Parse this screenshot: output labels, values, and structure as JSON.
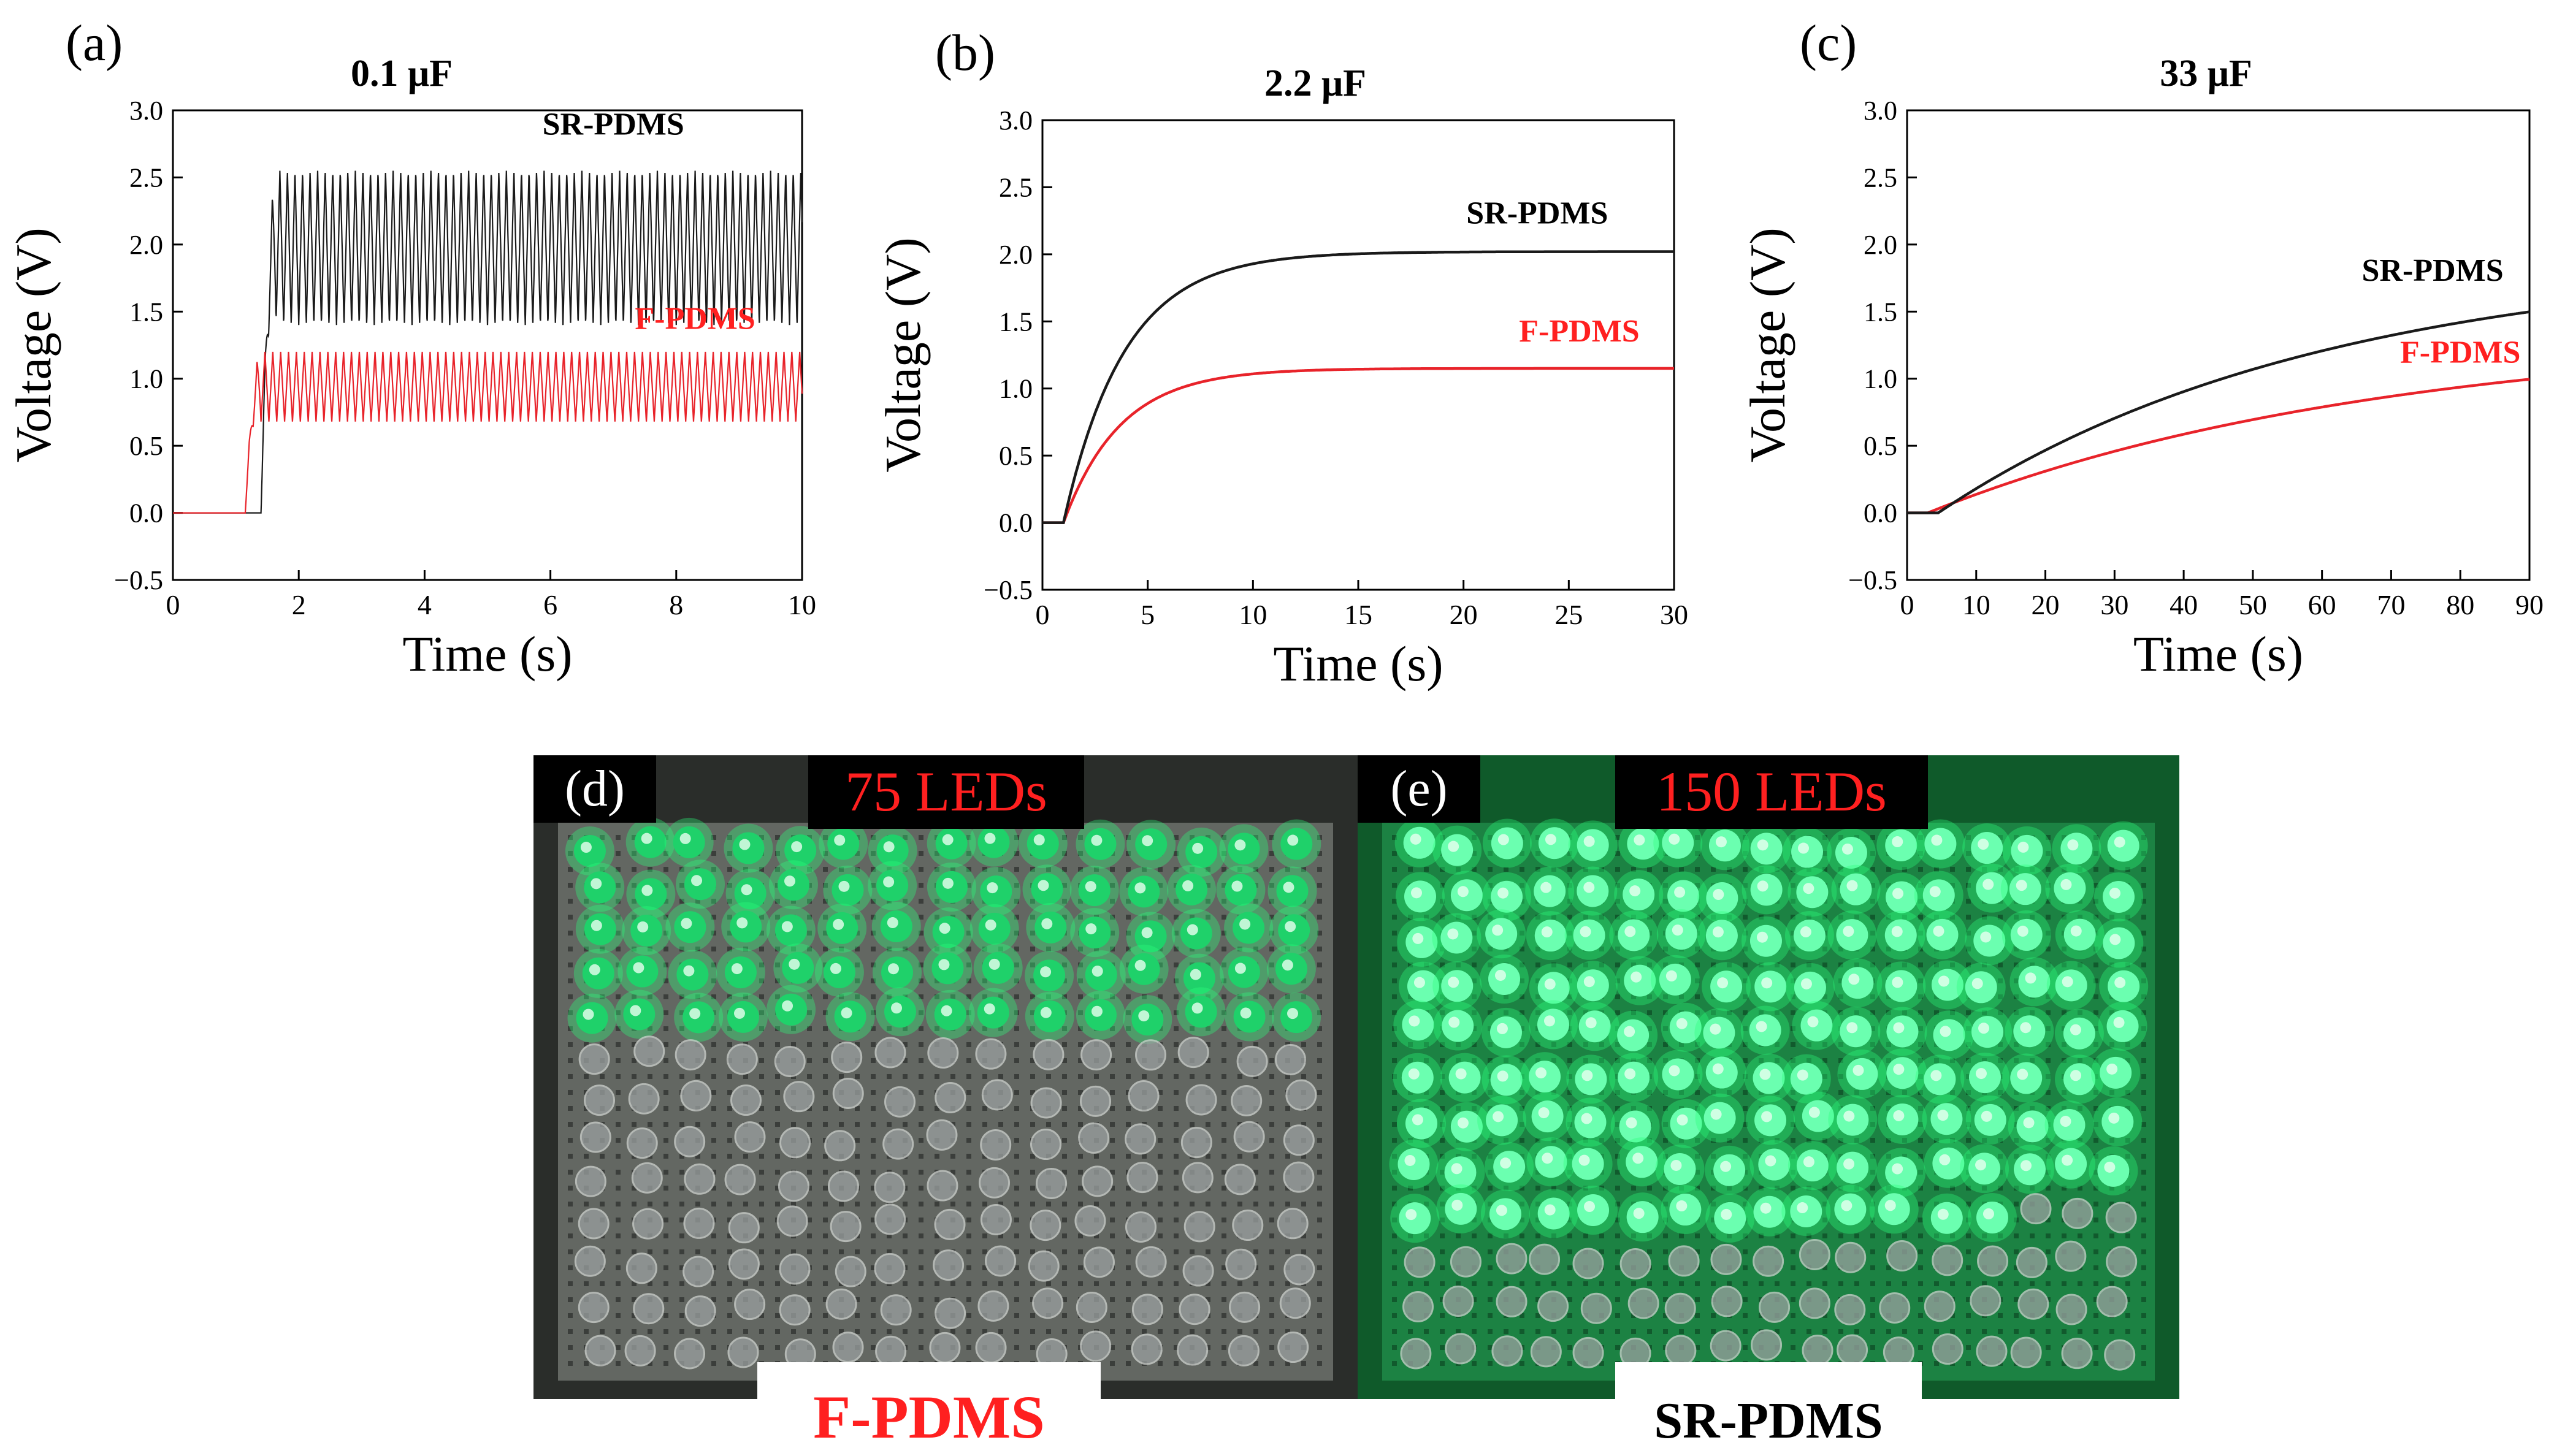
{
  "colors": {
    "sr": "#1a1a1a",
    "f": "#e8232a",
    "label_red": "#ff2020",
    "led_green": "#2cff7a",
    "led_off": "#9aa0a0",
    "board_dark": "#2a2d2a",
    "board_green": "#0f5a2a"
  },
  "chart_data": [
    {
      "id": "a",
      "type": "line",
      "panel_label": "(a)",
      "title": "0.1 μF",
      "xlabel": "Time (s)",
      "ylabel": "Voltage (V)",
      "xlim": [
        0,
        10
      ],
      "ylim": [
        -0.5,
        3.0
      ],
      "xticks": [
        0,
        2,
        4,
        6,
        8,
        10
      ],
      "xtick_labels": [
        "0",
        "2",
        "4",
        "6",
        "8",
        "10"
      ],
      "yticks": [
        -0.5,
        0.0,
        0.5,
        1.0,
        1.5,
        2.0,
        2.5,
        3.0
      ],
      "ytick_labels": [
        "−0.5",
        "0.0",
        "0.5",
        "1.0",
        "1.5",
        "2.0",
        "2.5",
        "3.0"
      ],
      "series": [
        {
          "name": "SR-PDMS",
          "label": "SR-PDMS",
          "color": "#1a1a1a",
          "onset": 1.4,
          "high": 2.55,
          "low": 1.4,
          "period": 0.12
        },
        {
          "name": "F-PDMS",
          "label": "F-PDMS",
          "color": "#e8232a",
          "onset": 1.15,
          "high": 1.2,
          "low": 0.68,
          "period": 0.125
        }
      ],
      "annotations": [
        {
          "text": "SR-PDMS",
          "x": 7.0,
          "y": 2.82
        },
        {
          "text": "F-PDMS",
          "x": 8.3,
          "y": 1.37
        }
      ]
    },
    {
      "id": "b",
      "type": "line",
      "panel_label": "(b)",
      "title": "2.2 μF",
      "xlabel": "Time (s)",
      "ylabel": "Voltage (V)",
      "xlim": [
        0,
        30
      ],
      "ylim": [
        -0.5,
        3.0
      ],
      "xticks": [
        0,
        5,
        10,
        15,
        20,
        25,
        30
      ],
      "xtick_labels": [
        "0",
        "5",
        "10",
        "15",
        "20",
        "25",
        "30"
      ],
      "yticks": [
        -0.5,
        0.0,
        0.5,
        1.0,
        1.5,
        2.0,
        2.5,
        3.0
      ],
      "ytick_labels": [
        "−0.5",
        "0.0",
        "0.5",
        "1.0",
        "1.5",
        "2.0",
        "2.5",
        "3.0"
      ],
      "series": [
        {
          "name": "SR-PDMS",
          "label": "SR-PDMS",
          "color": "#1a1a1a",
          "t0": 1.0,
          "vmax": 2.02,
          "tau": 2.9
        },
        {
          "name": "F-PDMS",
          "label": "F-PDMS",
          "color": "#e8232a",
          "t0": 1.0,
          "vmax": 1.15,
          "tau": 2.7
        }
      ],
      "annotations": [
        {
          "text": "SR-PDMS",
          "x": 23.5,
          "y": 2.23
        },
        {
          "text": "F-PDMS",
          "x": 25.5,
          "y": 1.35
        }
      ]
    },
    {
      "id": "c",
      "type": "line",
      "panel_label": "(c)",
      "title": "33 μF",
      "xlabel": "Time (s)",
      "ylabel": "Voltage (V)",
      "xlim": [
        0,
        90
      ],
      "ylim": [
        -0.5,
        3.0
      ],
      "xticks": [
        0,
        10,
        20,
        30,
        40,
        50,
        60,
        70,
        80,
        90
      ],
      "xtick_labels": [
        "0",
        "10",
        "20",
        "30",
        "40",
        "50",
        "60",
        "70",
        "80",
        "90"
      ],
      "yticks": [
        -0.5,
        0.0,
        0.5,
        1.0,
        1.5,
        2.0,
        2.5,
        3.0
      ],
      "ytick_labels": [
        "−0.5",
        "0.0",
        "0.5",
        "1.0",
        "1.5",
        "2.0",
        "2.5",
        "3.0"
      ],
      "series": [
        {
          "name": "SR-PDMS",
          "label": "SR-PDMS",
          "color": "#1a1a1a",
          "t0": 4.5,
          "vmax": 1.9,
          "tau": 55
        },
        {
          "name": "F-PDMS",
          "label": "F-PDMS",
          "color": "#e8232a",
          "t0": 3.0,
          "vmax": 1.35,
          "tau": 65
        }
      ],
      "annotations": [
        {
          "text": "SR-PDMS",
          "x": 76,
          "y": 1.73
        },
        {
          "text": "F-PDMS",
          "x": 80,
          "y": 1.12
        }
      ]
    }
  ],
  "photos": [
    {
      "id": "d",
      "panel_label": "(d)",
      "banner": "75 LEDs",
      "caption": "F-PDMS",
      "lit_count": 75
    },
    {
      "id": "e",
      "panel_label": "(e)",
      "banner": "150 LEDs",
      "caption": "SR-PDMS",
      "lit_count": 150
    }
  ]
}
